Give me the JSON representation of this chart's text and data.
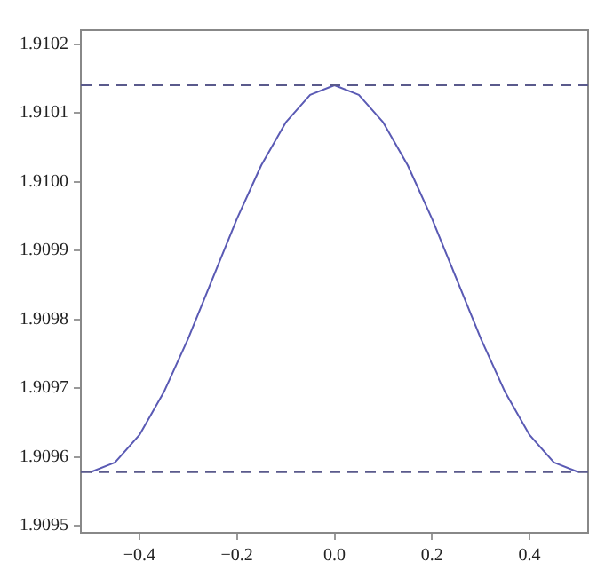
{
  "chart_data": {
    "type": "line",
    "x": [
      -0.5,
      -0.45,
      -0.4,
      -0.35,
      -0.3,
      -0.25,
      -0.2,
      -0.15,
      -0.1,
      -0.05,
      0,
      0.05,
      0.1,
      0.15,
      0.2,
      0.25,
      0.3,
      0.35,
      0.4,
      0.45,
      0.5
    ],
    "series": [
      {
        "color": "#5a5ab4",
        "values": [
          1.909578,
          1.909592,
          1.909632,
          1.909694,
          1.909772,
          1.909859,
          1.909946,
          1.910024,
          1.910086,
          1.910126,
          1.91014,
          1.910126,
          1.910086,
          1.910024,
          1.909946,
          1.909859,
          1.909772,
          1.909694,
          1.909632,
          1.909592,
          1.909578
        ]
      }
    ],
    "xlim": [
      -0.52,
      0.52
    ],
    "xticks": [
      {
        "value": -0.4,
        "label": "−0.4"
      },
      {
        "value": -0.2,
        "label": "−0.2"
      },
      {
        "value": 0,
        "label": "0.0"
      },
      0.2,
      0.4
    ],
    "ylim": [
      1.90949,
      1.91022
    ],
    "yticks": [
      1.9095,
      1.9096,
      1.9097,
      1.9098,
      1.9099,
      {
        "value": 1.91,
        "label": "1.9100"
      },
      1.9101,
      1.9102
    ],
    "ref_lines": [
      {
        "axis": "y",
        "value": 1.91014,
        "color": "#5a5a8c",
        "line_style": "dashed"
      },
      {
        "axis": "y",
        "value": 1.909578,
        "color": "#5a5a8c",
        "line_style": "dashed"
      }
    ],
    "grid": false,
    "legend": false,
    "marker": "none",
    "line_style": "solid"
  }
}
